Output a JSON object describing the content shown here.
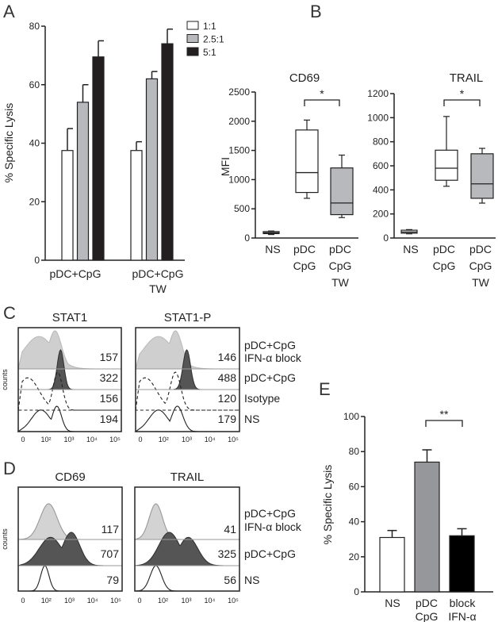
{
  "panels": {
    "a": "A",
    "b": "B",
    "c": "C",
    "d": "D",
    "e": "E"
  },
  "chart_data": [
    {
      "id": "A",
      "type": "bar",
      "ylabel": "% Specific Lysis",
      "ylim": [
        0,
        80
      ],
      "yticks": [
        "0",
        "20",
        "40",
        "60",
        "80"
      ],
      "categories": [
        [
          "pDC+CpG"
        ],
        [
          "pDC+CpG",
          "TW"
        ]
      ],
      "legend_position": "top-right",
      "series": [
        {
          "name": "1:1",
          "color": "#ffffff",
          "values": [
            37.5,
            37.5
          ],
          "errors": [
            7.5,
            3
          ]
        },
        {
          "name": "2.5:1",
          "color": "#b8b9bc",
          "values": [
            54,
            62
          ],
          "errors": [
            6,
            2.5
          ]
        },
        {
          "name": "5:1",
          "color": "#231f20",
          "values": [
            69.5,
            74
          ],
          "errors": [
            5.5,
            5
          ]
        }
      ]
    },
    {
      "id": "B-CD69",
      "type": "box",
      "title": "CD69",
      "ylabel": "MFI",
      "ylim": [
        0,
        2500
      ],
      "yticks": [
        "0",
        "500",
        "1000",
        "1500",
        "2000",
        "2500"
      ],
      "categories": [
        [
          "NS"
        ],
        [
          "pDC",
          "CpG"
        ],
        [
          "pDC",
          "CpG",
          "TW"
        ]
      ],
      "boxes": [
        {
          "min": 60,
          "q1": 75,
          "median": 90,
          "q3": 110,
          "max": 120,
          "color": "#ffffff"
        },
        {
          "min": 680,
          "q1": 780,
          "median": 1120,
          "q3": 1850,
          "max": 2020,
          "color": "#ffffff"
        },
        {
          "min": 350,
          "q1": 400,
          "median": 600,
          "q3": 1200,
          "max": 1420,
          "color": "#b8b9bc"
        }
      ],
      "significance": {
        "from": 1,
        "to": 2,
        "label": "*"
      }
    },
    {
      "id": "B-TRAIL",
      "type": "box",
      "title": "TRAIL",
      "ylim": [
        0,
        1200
      ],
      "yticks": [
        "0",
        "200",
        "400",
        "600",
        "800",
        "1000",
        "1200"
      ],
      "categories": [
        [
          "NS"
        ],
        [
          "pDC",
          "CpG"
        ],
        [
          "pDC",
          "CpG",
          "TW"
        ]
      ],
      "boxes": [
        {
          "min": 35,
          "q1": 40,
          "median": 50,
          "q3": 65,
          "max": 70,
          "color": "#ffffff"
        },
        {
          "min": 430,
          "q1": 480,
          "median": 580,
          "q3": 730,
          "max": 1010,
          "color": "#ffffff"
        },
        {
          "min": 290,
          "q1": 330,
          "median": 450,
          "q3": 700,
          "max": 745,
          "color": "#b8b9bc"
        }
      ],
      "significance": {
        "from": 1,
        "to": 2,
        "label": "*"
      }
    },
    {
      "id": "C",
      "type": "histogram",
      "ylabel": "counts",
      "xticks": [
        "0",
        "10²",
        "10³",
        "10⁴",
        "10⁵"
      ],
      "row_labels": [
        [
          "pDC+CpG",
          "IFN-α block"
        ],
        [
          "pDC+CpG"
        ],
        [
          "Isotype"
        ],
        [
          "NS"
        ]
      ],
      "plots": [
        {
          "title": "STAT1",
          "mfi": [
            "157",
            "322",
            "156",
            "194"
          ]
        },
        {
          "title": "STAT1-P",
          "mfi": [
            "146",
            "488",
            "120",
            "179"
          ]
        }
      ]
    },
    {
      "id": "D",
      "type": "histogram",
      "ylabel": "counts",
      "xticks": [
        "0",
        "10²",
        "10³",
        "10⁴",
        "10⁵"
      ],
      "row_labels": [
        [
          "pDC+CpG",
          "IFN-α block"
        ],
        [
          "pDC+CpG"
        ],
        [
          "NS"
        ]
      ],
      "plots": [
        {
          "title": "CD69",
          "mfi": [
            "117",
            "707",
            "79"
          ]
        },
        {
          "title": "TRAIL",
          "mfi": [
            "41",
            "325",
            "56"
          ]
        }
      ]
    },
    {
      "id": "E",
      "type": "bar",
      "ylabel": "% Specific Lysis",
      "ylim": [
        0,
        100
      ],
      "yticks": [
        "0",
        "20",
        "40",
        "60",
        "80",
        "100"
      ],
      "categories": [
        [
          "NS"
        ],
        [
          "pDC",
          "CpG"
        ],
        [
          "block",
          "IFN-α"
        ]
      ],
      "values": [
        31,
        74,
        32
      ],
      "errors": [
        4,
        7,
        4
      ],
      "colors": [
        "#ffffff",
        "#96979a",
        "#000000"
      ],
      "significance": {
        "from": 1,
        "to": 2,
        "label": "**"
      }
    }
  ]
}
